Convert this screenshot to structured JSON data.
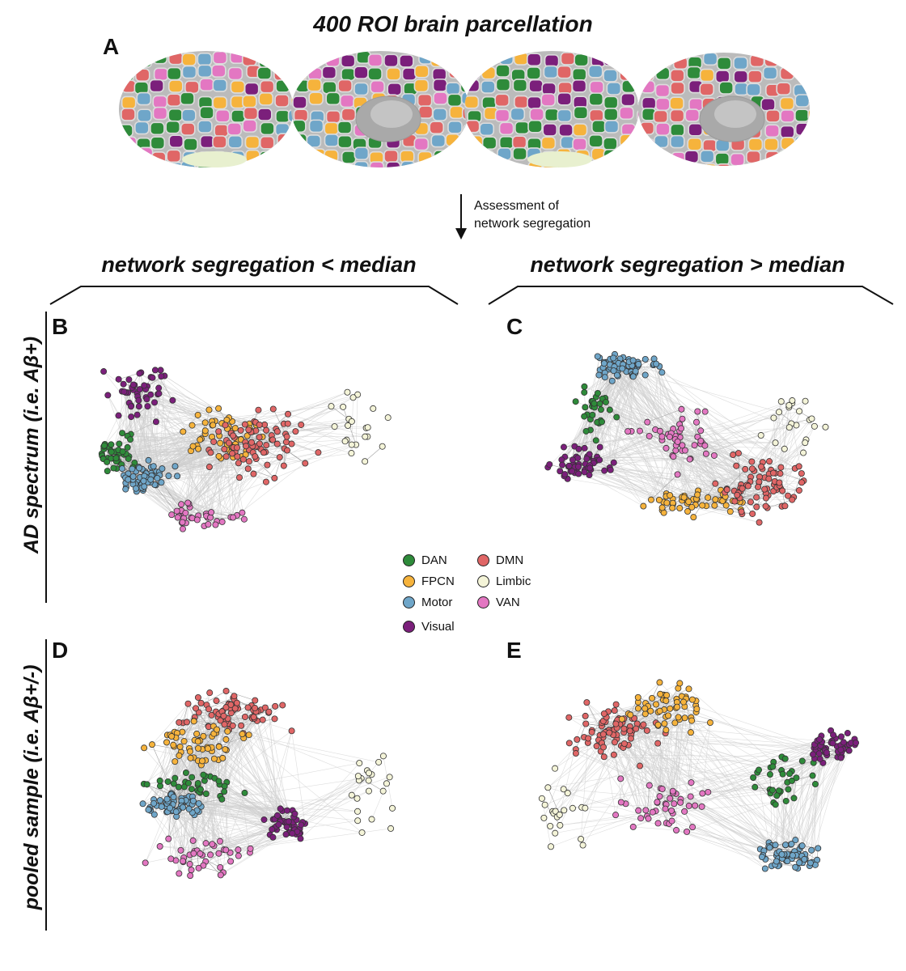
{
  "figure": {
    "title": "400 ROI brain parcellation",
    "panel_labels": {
      "a": "A",
      "b": "B",
      "c": "C",
      "d": "D",
      "e": "E"
    },
    "arrow_note_line1": "Assessment of",
    "arrow_note_line2": "network segregation",
    "col_headers": {
      "left": "network segregation < median",
      "right": "network segregation > median"
    },
    "row_labels": {
      "top": "AD spectrum (i.e. Aβ+)",
      "bottom": "pooled sample (i.e. Aβ+/-)"
    }
  },
  "legend": [
    {
      "label": "DAN",
      "color": "#2e8b3a"
    },
    {
      "label": "DMN",
      "color": "#e06666"
    },
    {
      "label": "FPCN",
      "color": "#f6b33c"
    },
    {
      "label": "Limbic",
      "color": "#f4f4d8"
    },
    {
      "label": "Motor",
      "color": "#6fa6c9"
    },
    {
      "label": "VAN",
      "color": "#e377c2"
    },
    {
      "label": "Visual",
      "color": "#7b1f7b"
    }
  ],
  "brain_colors": [
    "#2e8b3a",
    "#e06666",
    "#f6b33c",
    "#6fa6c9",
    "#e377c2",
    "#7b1f7b",
    "#f4f4d8"
  ]
}
